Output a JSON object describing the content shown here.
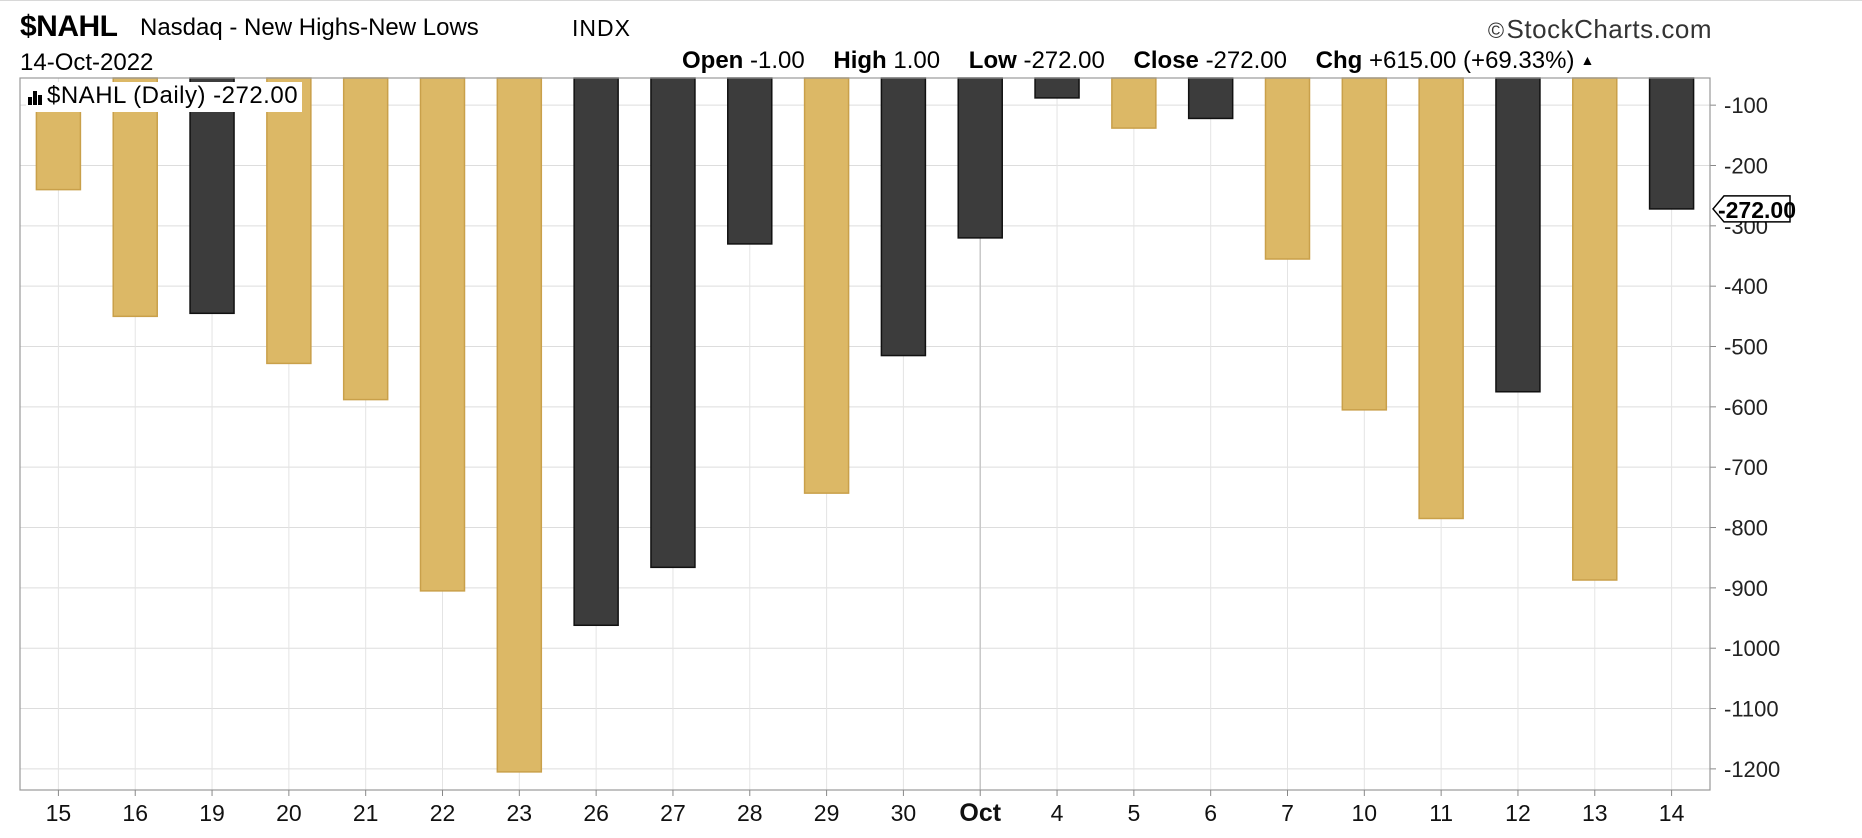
{
  "header": {
    "ticker": "$NAHL",
    "name": "Nasdaq - New Highs-New Lows",
    "exchange": "INDX",
    "brand": "StockCharts.com",
    "date": "14-Oct-2022",
    "open_label": "Open",
    "open_value": "-1.00",
    "high_label": "High",
    "high_value": "1.00",
    "low_label": "Low",
    "low_value": "-272.00",
    "close_label": "Close",
    "close_value": "-272.00",
    "chg_label": "Chg",
    "chg_value": "+615.00 (+69.33%)"
  },
  "legend": {
    "text": "$NAHL (Daily) -272.00"
  },
  "colors": {
    "up": "#dcb866",
    "up_border": "#c9a04a",
    "down": "#3c3c3c",
    "down_border": "#111111",
    "grid": "#dddddd"
  },
  "chart_data": {
    "type": "bar",
    "title": "$NAHL Nasdaq - New Highs-New Lows INDX",
    "categories": [
      "15",
      "16",
      "19",
      "20",
      "21",
      "22",
      "23",
      "26",
      "27",
      "28",
      "29",
      "30",
      "Oct",
      "4",
      "5",
      "6",
      "7",
      "10",
      "11",
      "12",
      "13",
      "14"
    ],
    "bars": [
      {
        "open": -110,
        "close": -240,
        "color": "up"
      },
      {
        "open": -55,
        "close": -450,
        "color": "up"
      },
      {
        "open": -55,
        "close": -445,
        "color": "down"
      },
      {
        "open": -55,
        "close": -528,
        "color": "up"
      },
      {
        "open": -55,
        "close": -588,
        "color": "up"
      },
      {
        "open": -55,
        "close": -905,
        "color": "up"
      },
      {
        "open": -55,
        "close": -1205,
        "color": "up"
      },
      {
        "open": -55,
        "close": -962,
        "color": "down"
      },
      {
        "open": -55,
        "close": -866,
        "color": "down"
      },
      {
        "open": -55,
        "close": -330,
        "color": "down"
      },
      {
        "open": -55,
        "close": -743,
        "color": "up"
      },
      {
        "open": -55,
        "close": -515,
        "color": "down"
      },
      {
        "open": -55,
        "close": -320,
        "color": "down"
      },
      {
        "open": -55,
        "close": -88,
        "color": "down"
      },
      {
        "open": -55,
        "close": -138,
        "color": "up"
      },
      {
        "open": -55,
        "close": -122,
        "color": "down"
      },
      {
        "open": -55,
        "close": -355,
        "color": "up"
      },
      {
        "open": -55,
        "close": -605,
        "color": "up"
      },
      {
        "open": -55,
        "close": -785,
        "color": "up"
      },
      {
        "open": -55,
        "close": -575,
        "color": "down"
      },
      {
        "open": -55,
        "close": -887,
        "color": "up"
      },
      {
        "open": -55,
        "close": -272,
        "color": "down"
      }
    ],
    "y_ticks": [
      -100,
      -200,
      -300,
      -400,
      -500,
      -600,
      -700,
      -800,
      -900,
      -1000,
      -1100,
      -1200
    ],
    "ylim": [
      -1235,
      -55
    ],
    "last_value_label": "-272.00",
    "grid": true
  }
}
